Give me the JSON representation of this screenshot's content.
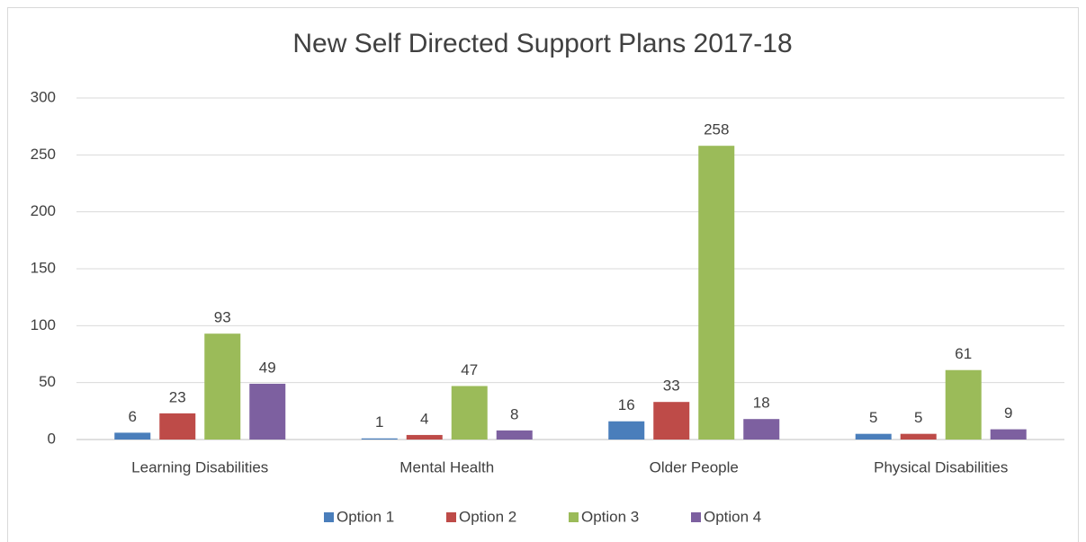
{
  "chart_data": {
    "type": "bar",
    "title": "New Self Directed Support Plans 2017-18",
    "categories": [
      "Learning Disabilities",
      "Mental Health",
      "Older People",
      "Physical Disabilities"
    ],
    "series": [
      {
        "name": "Option 1",
        "color": "#4a7ebb",
        "values": [
          6,
          1,
          16,
          5
        ]
      },
      {
        "name": "Option 2",
        "color": "#be4b48",
        "values": [
          23,
          4,
          33,
          5
        ]
      },
      {
        "name": "Option 3",
        "color": "#9bbb59",
        "values": [
          93,
          47,
          258,
          61
        ]
      },
      {
        "name": "Option 4",
        "color": "#7d60a0",
        "values": [
          49,
          8,
          18,
          9
        ]
      }
    ],
    "ylim": [
      0,
      300
    ],
    "yticks": [
      0,
      50,
      100,
      150,
      200,
      250,
      300
    ],
    "grid": true,
    "legend": "bottom"
  }
}
